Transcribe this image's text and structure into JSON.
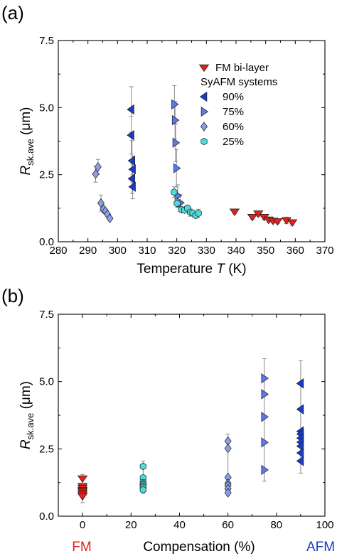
{
  "colors": {
    "FM": "#e0211c",
    "90%": "#1a3cc4",
    "75%": "#5d78e8",
    "60%": "#8c9ee6",
    "25%": "#48dcdc",
    "FM_label": "#e0211c",
    "AFM_label": "#1a3cc4"
  },
  "chart_data": [
    {
      "type": "scatter",
      "panel_label": "(a)",
      "xlabel_main": "Temperature ",
      "xlabel_italic": "T",
      "xlabel_unit": " (K)",
      "ylabel_italic": "R",
      "ylabel_sub": "sk.ave",
      "ylabel_unit": " (μm)",
      "xlim": [
        280,
        370
      ],
      "ylim": [
        0,
        7.5
      ],
      "xticks": [
        280,
        290,
        300,
        310,
        320,
        330,
        340,
        350,
        360,
        370
      ],
      "xtick_labels": [
        "280",
        "290",
        "300",
        "310",
        "320",
        "330",
        "340",
        "350",
        "360",
        "370"
      ],
      "yticks": [
        0,
        2.5,
        5,
        7.5
      ],
      "ytick_labels": [
        "0.0",
        "2.5",
        "5.0",
        "7.5"
      ],
      "grid": false,
      "legend": {
        "placement": "top-right",
        "title": "SyAFM systems",
        "entries": [
          {
            "key": "FM",
            "label": "FM bi-layer",
            "marker": "triangle-down"
          },
          {
            "key": "90%",
            "label": "90%",
            "marker": "triangle-left"
          },
          {
            "key": "75%",
            "label": "75%",
            "marker": "triangle-right"
          },
          {
            "key": "60%",
            "label": "60%",
            "marker": "diamond"
          },
          {
            "key": "25%",
            "label": "25%",
            "marker": "hexagon"
          }
        ]
      },
      "series": [
        {
          "key": "FM",
          "marker": "triangle-down",
          "x": [
            339.5,
            345.5,
            347.5,
            349.5,
            351,
            352.5,
            354,
            357,
            359
          ],
          "y": [
            1.12,
            0.92,
            1.05,
            0.92,
            0.82,
            0.78,
            0.76,
            0.8,
            0.72
          ],
          "err": [
            0.08,
            0.08,
            0.1,
            0.08,
            0.1,
            0.08,
            0.08,
            0.12,
            0.1
          ]
        },
        {
          "key": "90%",
          "marker": "triangle-left",
          "x": [
            304.6,
            304.6,
            304.9,
            304.9,
            305.1,
            305.1
          ],
          "y": [
            4.93,
            3.97,
            3.02,
            2.35,
            2.05,
            2.7
          ],
          "err": [
            0.85,
            0.7,
            0.75,
            0.55,
            0.45,
            0.5
          ]
        },
        {
          "key": "75%",
          "marker": "triangle-right",
          "x": [
            319.2,
            319.4,
            319.6,
            319.9,
            320.3,
            321.2
          ],
          "y": [
            5.12,
            4.53,
            3.69,
            2.74,
            1.72,
            1.45
          ],
          "err": [
            0.7,
            0.7,
            0.7,
            0.7,
            0.4,
            0.3
          ]
        },
        {
          "key": "60%",
          "marker": "diamond",
          "x": [
            292.6,
            293.4,
            294.4,
            295.2,
            295.9,
            296.6,
            297.4
          ],
          "y": [
            2.52,
            2.79,
            1.44,
            1.22,
            1.14,
            1.02,
            0.87
          ],
          "err": [
            0.3,
            0.28,
            0.3,
            0.15,
            0.1,
            0.08,
            0.08
          ]
        },
        {
          "key": "25%",
          "marker": "hexagon",
          "x": [
            319.1,
            320.1,
            321.6,
            322.6,
            323.6,
            324.6,
            325.4,
            326.4,
            327.3
          ],
          "y": [
            1.85,
            1.43,
            1.2,
            1.18,
            1.25,
            1.1,
            1.07,
            0.98,
            1.06
          ],
          "err": [
            0.2,
            0.15,
            0.1,
            0.08,
            0.1,
            0.15,
            0.1,
            0.1,
            0.15
          ]
        }
      ]
    },
    {
      "type": "scatter",
      "panel_label": "(b)",
      "xlabel": "Compensation (%)",
      "ylabel_italic": "R",
      "ylabel_sub": "sk.ave",
      "ylabel_unit": " (μm)",
      "xlim": [
        -10,
        100
      ],
      "ylim": [
        0,
        7.5
      ],
      "xticks": [
        0,
        20,
        40,
        60,
        80,
        100
      ],
      "xtick_labels": [
        "0",
        "20",
        "40",
        "60",
        "80",
        "100"
      ],
      "yticks": [
        0,
        2.5,
        5,
        7.5
      ],
      "ytick_labels": [
        "0.0",
        "2.5",
        "5.0",
        "7.5"
      ],
      "grid": false,
      "end_labels": {
        "left": "FM",
        "right": "AFM"
      },
      "series": [
        {
          "key": "FM",
          "marker": "triangle-down",
          "x": 0,
          "y": [
            1.4,
            1.12,
            1.05,
            0.97,
            0.92,
            0.87,
            0.8,
            0.74
          ],
          "err_max": [
            1.55,
            0.5
          ]
        },
        {
          "key": "25%",
          "marker": "hexagon",
          "x": 25,
          "y": [
            1.85,
            1.43,
            1.25,
            1.2,
            1.15,
            1.1,
            1.05,
            0.98
          ],
          "err_max": [
            2.05,
            0.85
          ]
        },
        {
          "key": "60%",
          "marker": "diamond",
          "x": 60,
          "y": [
            2.79,
            2.52,
            1.44,
            1.22,
            1.14,
            1.02,
            0.87
          ],
          "err_max": [
            3.05,
            0.78
          ]
        },
        {
          "key": "75%",
          "marker": "triangle-right",
          "x": 75,
          "y": [
            5.12,
            4.53,
            3.69,
            2.74,
            1.72
          ],
          "err_max": [
            5.85,
            1.3
          ]
        },
        {
          "key": "90%",
          "marker": "triangle-left",
          "x": 90,
          "y": [
            4.93,
            3.97,
            3.15,
            3.05,
            2.9,
            2.75,
            2.6,
            2.35,
            2.05
          ],
          "err_max": [
            5.78,
            1.6
          ]
        }
      ]
    }
  ]
}
